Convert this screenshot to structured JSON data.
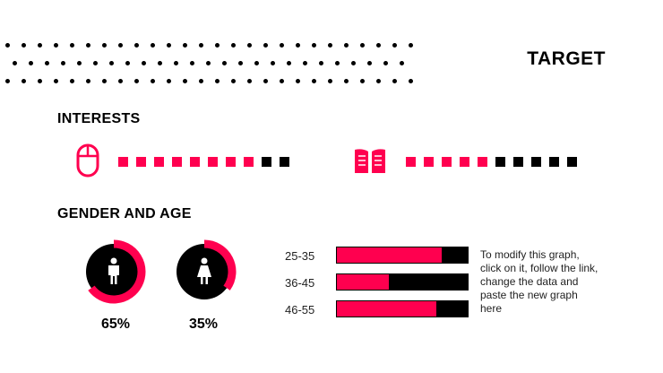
{
  "colors": {
    "accent": "#ff004f",
    "dark": "#000000"
  },
  "title": "TARGET",
  "interests": {
    "heading": "INTERESTS",
    "items": [
      {
        "icon": "mouse-icon",
        "filled": 8,
        "total": 10
      },
      {
        "icon": "book-icon",
        "filled": 5,
        "total": 10
      }
    ]
  },
  "gender_age": {
    "heading": "GENDER AND AGE",
    "gender": [
      {
        "icon": "male-icon",
        "percent": 65,
        "label": "65%"
      },
      {
        "icon": "female-icon",
        "percent": 35,
        "label": "35%"
      }
    ],
    "age_groups": [
      {
        "label": "25-35",
        "fraction": 0.8
      },
      {
        "label": "36-45",
        "fraction": 0.4
      },
      {
        "label": "46-55",
        "fraction": 0.76
      }
    ],
    "note": "To modify this graph, click on it, follow the link, change the data and paste the new graph here"
  }
}
